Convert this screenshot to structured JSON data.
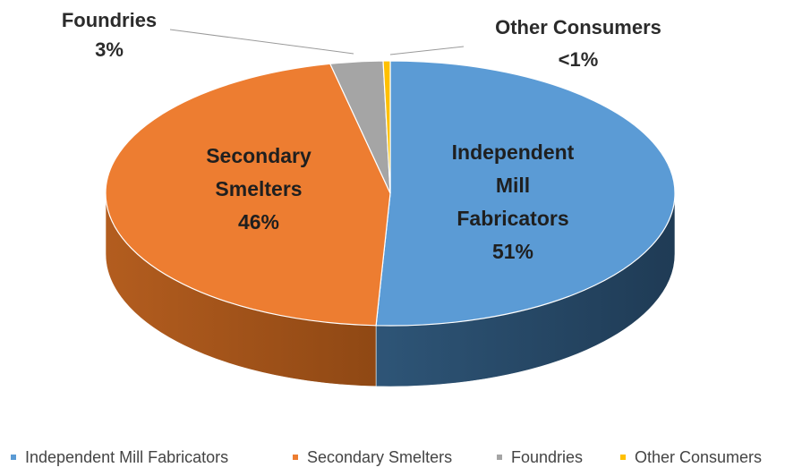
{
  "chart_data": {
    "type": "pie",
    "style": "3d",
    "title": "",
    "slices": [
      {
        "name": "Independent Mill Fabricators",
        "value": 51,
        "value_label": "51%",
        "label_lines": [
          "Independent",
          "Mill",
          "Fabricators"
        ],
        "color": "#5b9bd5",
        "side_color": "#2f5679",
        "label_position": "inside"
      },
      {
        "name": "Secondary Smelters",
        "value": 46,
        "value_label": "46%",
        "label_lines": [
          "Secondary",
          "Smelters"
        ],
        "color": "#ed7d31",
        "side_color": "#9e4e18",
        "label_position": "inside"
      },
      {
        "name": "Foundries",
        "value": 3,
        "value_label": "3%",
        "label_lines": [
          "Foundries"
        ],
        "color": "#a5a5a5",
        "side_color": "#707070",
        "label_position": "outside-top-left"
      },
      {
        "name": "Other Consumers",
        "value": 0.4,
        "value_label": "<1%",
        "label_lines": [
          "Other Consumers"
        ],
        "color": "#ffc000",
        "side_color": "#b38600",
        "label_position": "outside-top-right"
      }
    ],
    "legend": {
      "position": "bottom",
      "entries": [
        "Independent Mill Fabricators",
        "Secondary Smelters",
        "Foundries",
        "Other Consumers"
      ]
    }
  }
}
